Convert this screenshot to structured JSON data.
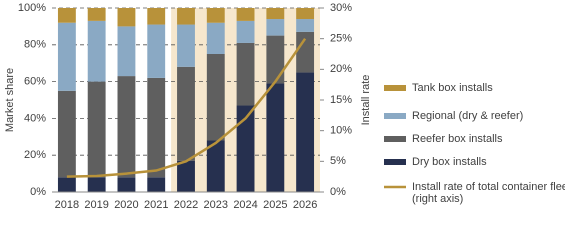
{
  "chart_data": {
    "type": "bar",
    "stacked": true,
    "categories": [
      "2018",
      "2019",
      "2020",
      "2021",
      "2022",
      "2023",
      "2024",
      "2025",
      "2026"
    ],
    "series": [
      {
        "name": "Dry box installs",
        "color": "#26304f",
        "values": [
          8,
          8,
          8,
          8,
          17,
          28,
          47,
          59,
          65
        ]
      },
      {
        "name": "Reefer box installs",
        "color": "#5f5f5f",
        "values": [
          47,
          52,
          55,
          54,
          51,
          47,
          34,
          26,
          22
        ]
      },
      {
        "name": "Regional (dry & reefer)",
        "color": "#8aa9c4",
        "values": [
          37,
          33,
          27,
          29,
          23,
          17,
          12,
          9,
          7
        ]
      },
      {
        "name": "Tank box installs",
        "color": "#b8923a",
        "values": [
          8,
          7,
          10,
          9,
          9,
          8,
          7,
          6,
          6
        ]
      },
      {
        "name": "Install rate of total container fleet (right axis)",
        "color": "#b8923a",
        "type": "line",
        "axis": "y2",
        "values": [
          2.5,
          2.6,
          3,
          3.5,
          5,
          8,
          12,
          18,
          25
        ]
      }
    ],
    "y_label": "Market share",
    "y2_label": "Install rate",
    "ylim": [
      0,
      100
    ],
    "yticks": [
      {
        "value": 0,
        "label": "0%"
      },
      {
        "value": 20,
        "label": "20%"
      },
      {
        "value": 40,
        "label": "40%"
      },
      {
        "value": 60,
        "label": "60%"
      },
      {
        "value": 80,
        "label": "80%"
      },
      {
        "value": 100,
        "label": "100%"
      }
    ],
    "y2lim": [
      0,
      30
    ],
    "y2ticks": [
      {
        "value": 0,
        "label": "0%"
      },
      {
        "value": 5,
        "label": "5%"
      },
      {
        "value": 10,
        "label": "10%"
      },
      {
        "value": 15,
        "label": "15%"
      },
      {
        "value": 20,
        "label": "20%"
      },
      {
        "value": 25,
        "label": "25%"
      },
      {
        "value": 30,
        "label": "30%"
      }
    ],
    "grid": true,
    "shaded_from_index": 4,
    "shade_color": "#f6e7cd",
    "legend": "right"
  }
}
